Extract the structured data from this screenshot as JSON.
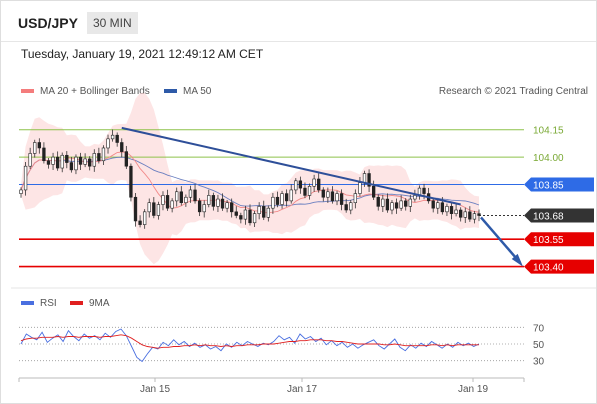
{
  "header": {
    "symbol": "USD/JPY",
    "timeframe": "30 MIN",
    "timestamp": "Tuesday, January 19, 2021 12:49:12 AM CET"
  },
  "legend": {
    "items": [
      {
        "label": "MA 20 + Bollinger Bands",
        "color": "#f47c7c"
      },
      {
        "label": "MA 50",
        "color": "#2e5aa8"
      }
    ],
    "credit": "Research © 2021 Trading Central"
  },
  "rsi_legend": {
    "items": [
      {
        "label": "RSI",
        "color": "#4a6fe0"
      },
      {
        "label": "9MA",
        "color": "#e02020"
      }
    ]
  },
  "chart_data": [
    {
      "type": "candlestick",
      "price_range": [
        103.31,
        104.28
      ],
      "levels": [
        {
          "value": "104.15",
          "role": "resistance",
          "color": "#8ec24a"
        },
        {
          "value": "104.00",
          "role": "resistance",
          "color": "#8ec24a"
        },
        {
          "value": "103.85",
          "role": "pivot",
          "color": "#2e6be6"
        },
        {
          "value": "103.68",
          "role": "last price",
          "color": "#333333"
        },
        {
          "value": "103.55",
          "role": "support",
          "color": "#e60000"
        },
        {
          "value": "103.40",
          "role": "support",
          "color": "#e60000"
        }
      ],
      "x_ticks": [
        "Jan 15",
        "Jan 17",
        "Jan 19"
      ],
      "close_series": [
        103.82,
        103.95,
        104.02,
        104.08,
        104.05,
        103.98,
        103.96,
        104.0,
        103.94,
        104.01,
        103.97,
        103.93,
        104.0,
        103.96,
        103.99,
        103.95,
        104.02,
        103.98,
        104.05,
        104.1,
        104.12,
        104.08,
        104.03,
        103.95,
        103.78,
        103.65,
        103.63,
        103.7,
        103.75,
        103.68,
        103.74,
        103.79,
        103.72,
        103.76,
        103.81,
        103.75,
        103.78,
        103.82,
        103.76,
        103.7,
        103.74,
        103.79,
        103.73,
        103.77,
        103.72,
        103.75,
        103.7,
        103.68,
        103.66,
        103.71,
        103.64,
        103.69,
        103.73,
        103.67,
        103.72,
        103.78,
        103.74,
        103.8,
        103.76,
        103.82,
        103.87,
        103.83,
        103.79,
        103.84,
        103.88,
        103.82,
        103.78,
        103.81,
        103.76,
        103.8,
        103.74,
        103.71,
        103.75,
        103.8,
        103.86,
        103.91,
        103.84,
        103.78,
        103.73,
        103.77,
        103.71,
        103.75,
        103.72,
        103.76,
        103.73,
        103.77,
        103.79,
        103.83,
        103.8,
        103.76,
        103.72,
        103.75,
        103.7,
        103.73,
        103.69,
        103.71,
        103.67,
        103.7,
        103.66,
        103.69,
        103.68
      ],
      "trendline": {
        "from": [
          104.16,
          0.22
        ],
        "to": [
          103.74,
          0.96
        ],
        "label": ""
      },
      "projection": {
        "from": 103.68,
        "to": 103.4
      }
    },
    {
      "type": "line",
      "name": "RSI",
      "y_ticks": [
        "70",
        "50",
        "30"
      ],
      "series": [
        {
          "name": "RSI",
          "values": [
            50,
            62,
            58,
            55,
            64,
            52,
            57,
            61,
            53,
            66,
            59,
            54,
            62,
            57,
            60,
            55,
            63,
            58,
            65,
            68,
            60,
            47,
            34,
            29,
            38,
            46,
            44,
            52,
            48,
            55,
            49,
            53,
            47,
            51,
            46,
            49,
            44,
            47,
            42,
            50,
            46,
            52,
            48,
            53,
            50,
            47,
            51,
            49,
            53,
            60,
            55,
            58,
            51,
            62,
            56,
            59,
            53,
            57,
            49,
            54,
            48,
            52,
            46,
            50,
            45,
            49,
            52,
            55,
            48,
            44,
            50,
            56,
            46,
            42,
            49,
            45,
            51,
            47,
            53,
            49,
            45,
            50,
            46,
            52,
            48,
            51,
            47,
            50
          ]
        },
        {
          "name": "9MA",
          "values": [
            54,
            56,
            57,
            57,
            58,
            58,
            58,
            59,
            58,
            59,
            59,
            58,
            59,
            59,
            59,
            58,
            59,
            59,
            60,
            61,
            60,
            57,
            53,
            49,
            47,
            46,
            45,
            46,
            46,
            47,
            47,
            48,
            48,
            49,
            48,
            49,
            48,
            48,
            47,
            48,
            47,
            48,
            48,
            49,
            49,
            49,
            50,
            50,
            50,
            51,
            52,
            53,
            53,
            54,
            54,
            55,
            55,
            55,
            54,
            54,
            53,
            53,
            52,
            51,
            50,
            50,
            50,
            50,
            50,
            49,
            49,
            50,
            49,
            48,
            48,
            48,
            48,
            48,
            49,
            49,
            48,
            49,
            48,
            49,
            49,
            49,
            49,
            49
          ]
        }
      ],
      "ylim": [
        20,
        80
      ]
    }
  ]
}
